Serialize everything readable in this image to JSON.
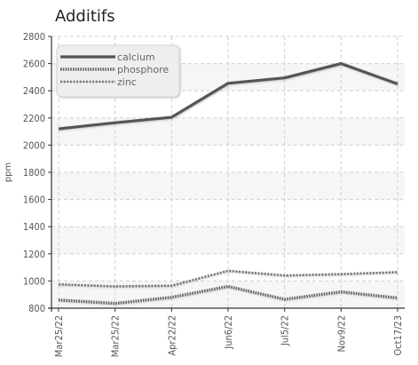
{
  "chart_data": {
    "type": "line",
    "title": "Additifs",
    "ylabel": "ppm",
    "xlabel": "",
    "categories": [
      "Mar25/22",
      "Mar25/22",
      "Apr22/22",
      "Jun6/22",
      "Jul5/22",
      "Nov9/22",
      "Oct17/23"
    ],
    "ylim": [
      800,
      2800
    ],
    "yticks": [
      800,
      1000,
      1200,
      1400,
      1600,
      1800,
      2000,
      2200,
      2400,
      2600,
      2800
    ],
    "grid": true,
    "legend_position": "top-left",
    "series": [
      {
        "name": "calcium",
        "values": [
          2120,
          2165,
          2205,
          2455,
          2495,
          2600,
          2450
        ],
        "color": "#555555",
        "style": "solid"
      },
      {
        "name": "phosphore",
        "values": [
          860,
          835,
          880,
          960,
          865,
          920,
          875
        ],
        "color": "#666666",
        "style": "dotted"
      },
      {
        "name": "zinc",
        "values": [
          975,
          960,
          965,
          1075,
          1040,
          1050,
          1065
        ],
        "color": "#777777",
        "style": "dashed"
      }
    ]
  }
}
